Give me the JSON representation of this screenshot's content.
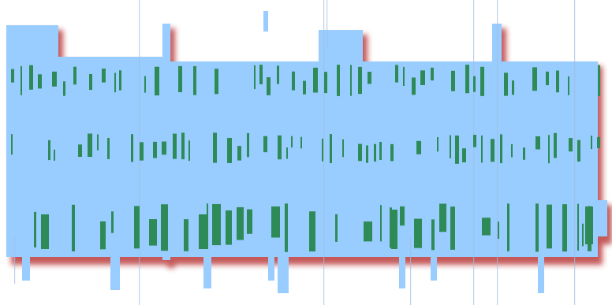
{
  "colors": {
    "background": "#ffffff",
    "panel": "#99ccff",
    "shadow": "#b22222",
    "glyph": "#2e8b57",
    "outline": "#9fbfdf"
  }
}
